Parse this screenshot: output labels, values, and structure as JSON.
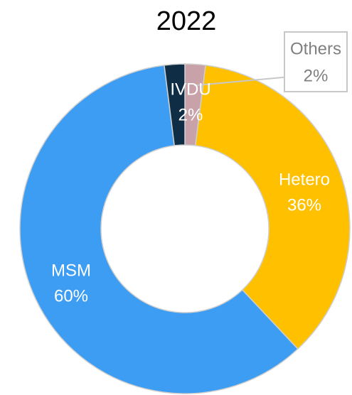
{
  "chart_data": {
    "type": "donut",
    "title": "2022",
    "categories": [
      "Others",
      "Hetero",
      "MSM",
      "IVDU"
    ],
    "values": [
      2,
      36,
      60,
      2
    ],
    "value_labels": [
      "2%",
      "36%",
      "60%",
      "2%"
    ],
    "colors": [
      "#c8a2a8",
      "#ffc000",
      "#3d9df2",
      "#0f2d45"
    ]
  }
}
